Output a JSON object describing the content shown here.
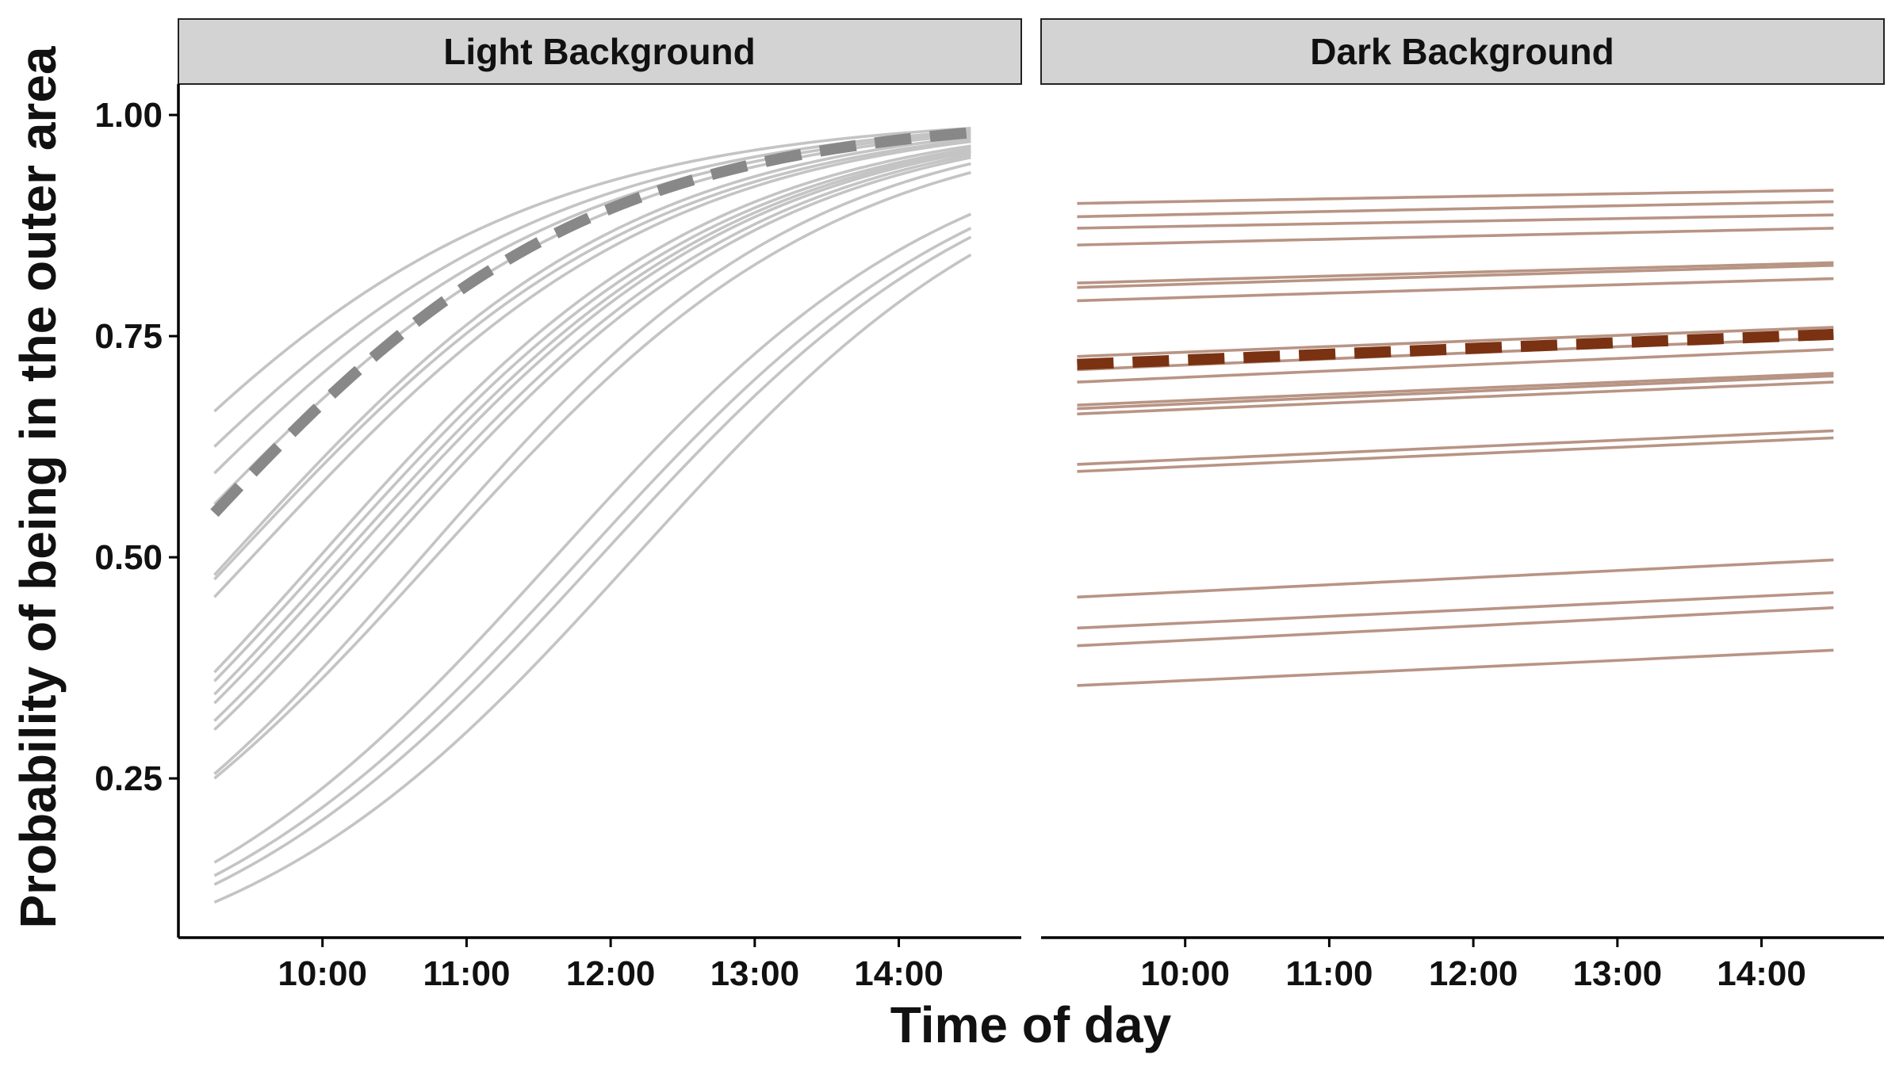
{
  "chart_data": {
    "type": "line",
    "xlabel": "Time of day",
    "ylabel": "Probability of being in the outer area",
    "xlim": [
      9.0,
      14.85
    ],
    "ylim": [
      0.07,
      1.035
    ],
    "x_ticks": [
      {
        "value": 10,
        "label": "10:00"
      },
      {
        "value": 11,
        "label": "11:00"
      },
      {
        "value": 12,
        "label": "12:00"
      },
      {
        "value": 13,
        "label": "13:00"
      },
      {
        "value": 14,
        "label": "14:00"
      }
    ],
    "y_ticks": [
      {
        "value": 0.25,
        "label": "0.25"
      },
      {
        "value": 0.5,
        "label": "0.50"
      },
      {
        "value": 0.75,
        "label": "0.75"
      },
      {
        "value": 1.0,
        "label": "1.00"
      }
    ],
    "x_range": [
      9.25,
      14.5
    ],
    "facets": [
      {
        "label": "Light Background",
        "line_color": "#c4c4c4",
        "mean_color": "#888888",
        "mean": {
          "start": 0.55,
          "end": 0.98
        },
        "individuals": [
          {
            "start": 0.665,
            "end": 0.985
          },
          {
            "start": 0.625,
            "end": 0.982
          },
          {
            "start": 0.595,
            "end": 0.98
          },
          {
            "start": 0.56,
            "end": 0.978
          },
          {
            "start": 0.48,
            "end": 0.975
          },
          {
            "start": 0.475,
            "end": 0.972
          },
          {
            "start": 0.455,
            "end": 0.97
          },
          {
            "start": 0.37,
            "end": 0.965
          },
          {
            "start": 0.36,
            "end": 0.962
          },
          {
            "start": 0.345,
            "end": 0.96
          },
          {
            "start": 0.335,
            "end": 0.958
          },
          {
            "start": 0.315,
            "end": 0.955
          },
          {
            "start": 0.305,
            "end": 0.952
          },
          {
            "start": 0.255,
            "end": 0.945
          },
          {
            "start": 0.25,
            "end": 0.935
          },
          {
            "start": 0.155,
            "end": 0.888
          },
          {
            "start": 0.14,
            "end": 0.872
          },
          {
            "start": 0.13,
            "end": 0.862
          },
          {
            "start": 0.11,
            "end": 0.842
          }
        ]
      },
      {
        "label": "Dark Background",
        "line_color": "#b89484",
        "mean_color": "#7a3212",
        "mean": {
          "start": 0.718,
          "end": 0.752
        },
        "individuals": [
          {
            "start": 0.9,
            "end": 0.915
          },
          {
            "start": 0.885,
            "end": 0.902
          },
          {
            "start": 0.872,
            "end": 0.887
          },
          {
            "start": 0.853,
            "end": 0.872
          },
          {
            "start": 0.81,
            "end": 0.833
          },
          {
            "start": 0.805,
            "end": 0.83
          },
          {
            "start": 0.79,
            "end": 0.815
          },
          {
            "start": 0.727,
            "end": 0.76
          },
          {
            "start": 0.712,
            "end": 0.748
          },
          {
            "start": 0.698,
            "end": 0.735
          },
          {
            "start": 0.672,
            "end": 0.708
          },
          {
            "start": 0.668,
            "end": 0.705
          },
          {
            "start": 0.662,
            "end": 0.698
          },
          {
            "start": 0.605,
            "end": 0.643
          },
          {
            "start": 0.597,
            "end": 0.635
          },
          {
            "start": 0.455,
            "end": 0.497
          },
          {
            "start": 0.42,
            "end": 0.46
          },
          {
            "start": 0.4,
            "end": 0.443
          },
          {
            "start": 0.355,
            "end": 0.395
          }
        ]
      }
    ]
  }
}
